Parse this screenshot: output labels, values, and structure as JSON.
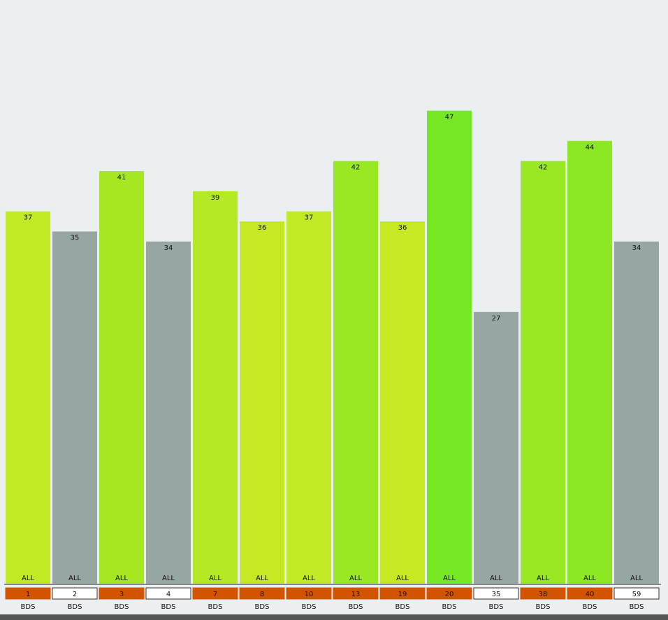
{
  "chart_data": {
    "type": "bar",
    "categories": [
      "1",
      "2",
      "3",
      "4",
      "7",
      "8",
      "10",
      "13",
      "19",
      "20",
      "35",
      "38",
      "40",
      "59"
    ],
    "values": [
      37,
      35,
      41,
      34,
      39,
      36,
      37,
      42,
      36,
      47,
      27,
      42,
      44,
      34
    ],
    "colors": [
      "#c2ea24",
      "#97a5a5",
      "#a5e822",
      "#97a5a5",
      "#b6e925",
      "#c5ea24",
      "#c2ea24",
      "#98e824",
      "#c5ea24",
      "#77e824",
      "#97a5a5",
      "#98e824",
      "#8de824",
      "#97a5a5"
    ],
    "category_colors": [
      "#d35400",
      "#ffffff",
      "#d35400",
      "#ffffff",
      "#d35400",
      "#d35400",
      "#d35400",
      "#d35400",
      "#d35400",
      "#d35400",
      "#ffffff",
      "#d35400",
      "#d35400",
      "#ffffff"
    ],
    "bar_labels": [
      "ALL",
      "ALL",
      "ALL",
      "ALL",
      "ALL",
      "ALL",
      "ALL",
      "ALL",
      "ALL",
      "ALL",
      "ALL",
      "ALL",
      "ALL",
      "ALL"
    ],
    "sub_labels": [
      "BDS",
      "BDS",
      "BDS",
      "BDS",
      "BDS",
      "BDS",
      "BDS",
      "BDS",
      "BDS",
      "BDS",
      "BDS",
      "BDS",
      "BDS",
      "BDS"
    ],
    "ylim": [
      0,
      58
    ]
  }
}
